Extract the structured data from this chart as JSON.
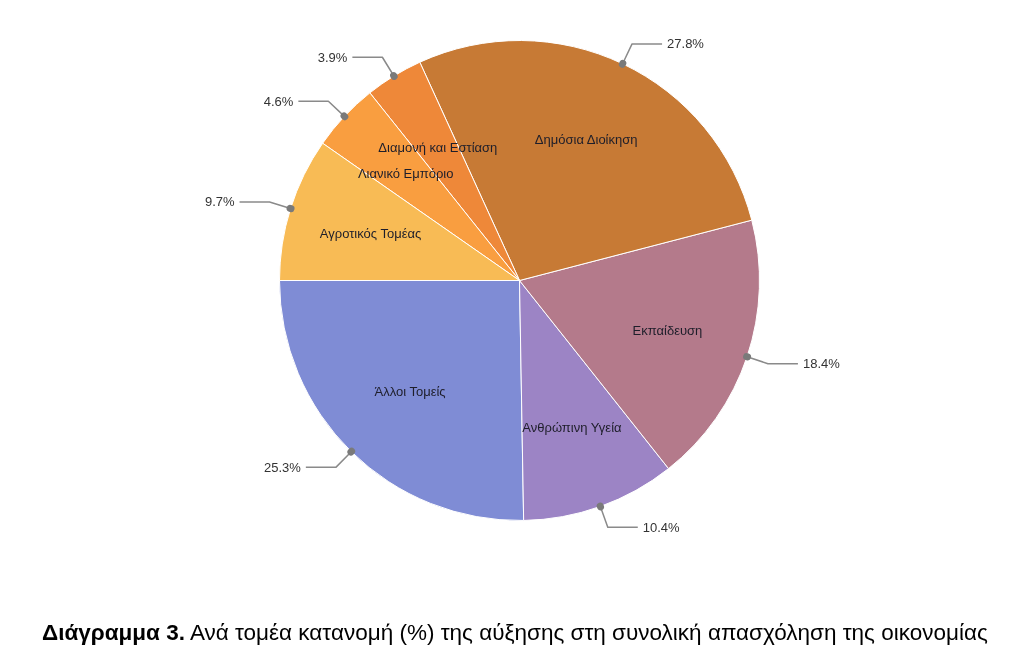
{
  "chart_data": {
    "type": "pie",
    "categories": [
      "Άλλοι Τομείς",
      "Ανθρώπινη Υγεία",
      "Εκπαίδευση",
      "Δημόσια Διοίκηση",
      "Διαμονή και Εστίαση",
      "Λιανικό Εμπόριο",
      "Αγροτικός Τομέας"
    ],
    "values": [
      25.3,
      10.4,
      18.4,
      27.8,
      3.9,
      4.6,
      9.7
    ],
    "colors": [
      "#7f8cd5",
      "#9c84c5",
      "#b47a8b",
      "#c77a35",
      "#ee8839",
      "#f99e40",
      "#f8bb55"
    ],
    "value_labels": [
      "25.3%",
      "10.4%",
      "18.4%",
      "27.8%",
      "3.9%",
      "4.6%",
      "9.7%"
    ],
    "title": "Διάγραμμα 3.",
    "subtitle": "Ανά τομέα κατανομή (%) της αύξησης στη συνολική απασχόληση της οικονομίας"
  }
}
